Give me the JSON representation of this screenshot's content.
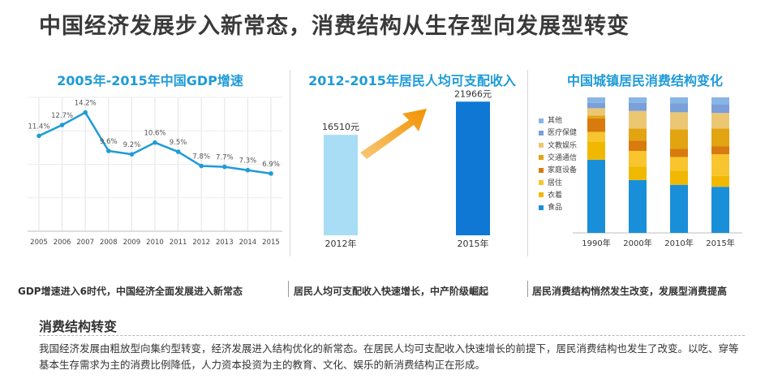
{
  "main_title": "中国经济发展步入新常态，消费结构从生存型向发展型转变",
  "chart_data": [
    {
      "type": "line",
      "title": "2005年-2015年中国GDP增速",
      "x": [
        "2005",
        "2006",
        "2007",
        "2008",
        "2009",
        "2010",
        "2011",
        "2012",
        "2013",
        "2014",
        "2015"
      ],
      "values": [
        11.4,
        12.7,
        14.2,
        9.6,
        9.2,
        10.6,
        9.5,
        7.8,
        7.7,
        7.3,
        6.9
      ],
      "point_labels": [
        "11.4%",
        "12.7%",
        "14.2%",
        "9.6%",
        "9.2%",
        "10.6%",
        "9.5%",
        "7.8%",
        "7.7%",
        "7.3%",
        "6.9%"
      ],
      "ylim": [
        0,
        16
      ],
      "grid": true,
      "color": "#1f9bd7"
    },
    {
      "type": "bar",
      "title": "2012-2015年居民人均可支配收入",
      "categories": [
        "2012年",
        "2015年"
      ],
      "values": [
        16510,
        21966
      ],
      "value_labels": [
        "16510元",
        "21966元"
      ],
      "ylim": [
        0,
        24000
      ],
      "colors": [
        "#a9dcf5",
        "#0f78d4"
      ]
    },
    {
      "type": "bar",
      "stacked": true,
      "title": "中国城镇居民消费结构变化",
      "categories": [
        "1990年",
        "2000年",
        "2010年",
        "2015年"
      ],
      "series": [
        {
          "name": "食品",
          "color": "#1a8fd9",
          "values": [
            54,
            39,
            35.5,
            34
          ]
        },
        {
          "name": "衣着",
          "color": "#f0b800",
          "values": [
            13.5,
            10,
            10.5,
            8
          ]
        },
        {
          "name": "居住",
          "color": "#f8c52e",
          "values": [
            7,
            11.5,
            10,
            16
          ]
        },
        {
          "name": "家庭设备",
          "color": "#d87a0e",
          "values": [
            10,
            7.5,
            6,
            6
          ]
        },
        {
          "name": "交通通信",
          "color": "#e3a412",
          "values": [
            2,
            9,
            14.5,
            13
          ]
        },
        {
          "name": "文教娱乐",
          "color": "#ecc773",
          "values": [
            5.5,
            13,
            12.5,
            11.5
          ]
        },
        {
          "name": "医疗保健",
          "color": "#7b9fd8",
          "values": [
            4,
            6,
            6.5,
            6.5
          ]
        },
        {
          "name": "其他",
          "color": "#87b5e6",
          "values": [
            4,
            4,
            4.5,
            5
          ]
        }
      ],
      "ylim": [
        0,
        100
      ]
    }
  ],
  "captions": [
    "GDP增速进入6时代，中国经济全面发展进入新常态",
    "居民人均可支配收入快速增长，中产阶级崛起",
    "居民消费结构悄然发生改变，发展型消费提高"
  ],
  "section": {
    "title": "消费结构转变",
    "body": "我国经济发展由粗放型向集约型转变，经济发展进入结构优化的新常态。在居民人均可支配收入快速增长的前提下，居民消费结构也发生了改变。以吃、穿等基本生存需求为主的消费比例降低，人力资本投资为主的教育、文化、娱乐的新消费结构正在形成。"
  },
  "colors": {
    "accent": "#1f9bd7",
    "arrow_start": "#f7c97a",
    "arrow_end": "#f19200"
  }
}
